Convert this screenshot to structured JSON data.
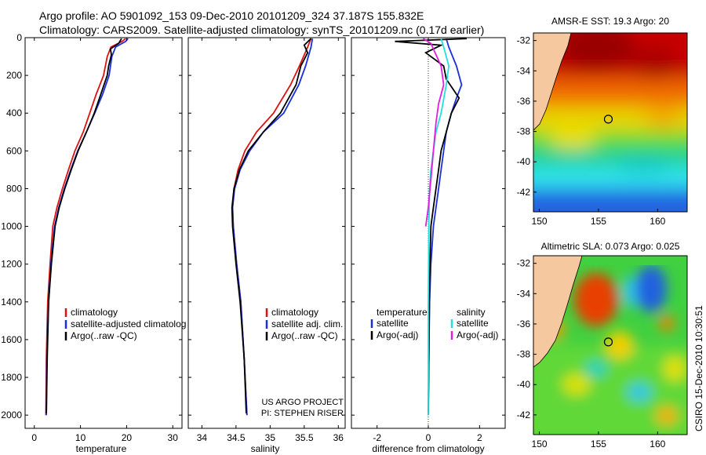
{
  "title_line1": "Argo profile: AO 5901092_153 09-Dec-2010 20101209_324 37.187S 155.832E",
  "title_line2": "Climatology: CARS2009. Satellite-adjusted climatology: synTS_20101209.nc (0.17d earlier)",
  "stamp": "CSIRO 15-Dec-2010 10:30:51",
  "colors": {
    "climatology": "#e01010",
    "satellite": "#1a2ee0",
    "argo": "#000000",
    "salinity_sat": "#20e0e0",
    "salinity_argo": "#e020e0"
  },
  "chart_data": [
    {
      "type": "line",
      "xlabel": "temperature",
      "xlim": [
        -2,
        32
      ],
      "xticks": [
        0,
        10,
        20,
        30
      ],
      "ylim": [
        2070,
        0
      ],
      "yticks": [
        0,
        200,
        400,
        600,
        800,
        1000,
        1200,
        1400,
        1600,
        1800,
        2000
      ],
      "legend": {
        "position": "lower-left",
        "entries": [
          "climatology",
          "satellite-adjusted climatolog",
          "Argo(..raw -QC)"
        ]
      },
      "series": [
        {
          "name": "climatology",
          "color": "#e01010",
          "x": [
            19.8,
            19.0,
            16.6,
            15.8,
            15.0,
            13.4,
            12.0,
            10.6,
            8.8,
            7.4,
            6.1,
            4.9,
            4.0,
            3.4,
            2.9,
            2.6,
            2.5
          ],
          "y": [
            5,
            20,
            50,
            100,
            200,
            300,
            400,
            500,
            600,
            700,
            800,
            900,
            1000,
            1200,
            1400,
            1700,
            2000
          ]
        },
        {
          "name": "satellite-adjusted climatolog",
          "color": "#1a2ee0",
          "x": [
            20.3,
            19.8,
            17.6,
            16.8,
            16.2,
            14.8,
            13.1,
            11.3,
            9.4,
            7.9,
            6.5,
            5.3,
            4.4,
            3.6,
            3.1,
            2.7,
            2.6
          ],
          "y": [
            5,
            20,
            50,
            100,
            200,
            300,
            400,
            500,
            600,
            700,
            800,
            900,
            1000,
            1200,
            1400,
            1700,
            2000
          ]
        },
        {
          "name": "Argo(..raw -QC)",
          "color": "#000000",
          "x": [
            18.9,
            18.3,
            16.5,
            16.7,
            16.1,
            15.8,
            14.4,
            13.0,
            11.3,
            9.5,
            8.0,
            6.6,
            5.4,
            4.5,
            3.7,
            3.1,
            2.8,
            2.6
          ],
          "y": [
            5,
            30,
            60,
            90,
            150,
            200,
            300,
            400,
            500,
            600,
            700,
            800,
            900,
            1000,
            1200,
            1400,
            1700,
            1990
          ]
        }
      ]
    },
    {
      "type": "line",
      "xlabel": "salinity",
      "xlim": [
        33.8,
        36.1
      ],
      "xticks": [
        34,
        34.5,
        35,
        35.5,
        36
      ],
      "ylim": [
        2070,
        0
      ],
      "yticks": [
        0,
        200,
        400,
        600,
        800,
        1000,
        1200,
        1400,
        1600,
        1800,
        2000
      ],
      "legend": {
        "position": "lower-right",
        "entries": [
          "climatology",
          "satellite adj. clim.",
          "Argo(..raw -QC)"
        ]
      },
      "annotation_lines": [
        "US ARGO PROJECT",
        "PI: STEPHEN RISER"
      ],
      "series": [
        {
          "name": "climatology",
          "color": "#e01010",
          "x": [
            35.6,
            35.55,
            35.43,
            35.3,
            35.05,
            34.8,
            34.63,
            34.53,
            34.47,
            34.45,
            34.46,
            34.51,
            34.57,
            34.62,
            34.66
          ],
          "y": [
            5,
            50,
            150,
            250,
            400,
            500,
            600,
            700,
            800,
            900,
            1000,
            1200,
            1400,
            1700,
            2000
          ]
        },
        {
          "name": "satellite adj. clim.",
          "color": "#1a2ee0",
          "x": [
            35.62,
            35.6,
            35.52,
            35.42,
            35.2,
            34.9,
            34.7,
            34.56,
            34.48,
            34.45,
            34.46,
            34.51,
            34.57,
            34.62,
            34.66
          ],
          "y": [
            5,
            50,
            150,
            250,
            400,
            500,
            600,
            700,
            800,
            900,
            1000,
            1200,
            1400,
            1700,
            2000
          ]
        },
        {
          "name": "Argo(..raw -QC)",
          "color": "#000000",
          "x": [
            35.6,
            35.5,
            35.55,
            35.45,
            35.38,
            35.15,
            34.9,
            34.68,
            34.55,
            34.47,
            34.44,
            34.45,
            34.5,
            34.56,
            34.62,
            34.65
          ],
          "y": [
            5,
            40,
            80,
            150,
            250,
            400,
            500,
            600,
            700,
            800,
            900,
            1000,
            1200,
            1400,
            1700,
            1990
          ]
        }
      ]
    },
    {
      "type": "line",
      "xlabel": "difference from climatology",
      "xlim": [
        -3,
        3
      ],
      "xticks": [
        -2,
        0,
        2
      ],
      "ylim": [
        2070,
        0
      ],
      "yticks": [
        0,
        200,
        400,
        600,
        800,
        1000,
        1200,
        1400,
        1600,
        1800,
        2000
      ],
      "legend": {
        "position": "lower",
        "groups": [
          {
            "heading": "temperature",
            "entries": [
              "satellite",
              "Argo(-adj)"
            ]
          },
          {
            "heading": "salinity",
            "entries": [
              "satellite",
              "Argo(-adj)"
            ]
          }
        ]
      },
      "series": [
        {
          "name": "temperature satellite",
          "color": "#1a2ee0",
          "x": [
            0.7,
            0.8,
            1.1,
            1.3,
            1.1,
            0.9,
            0.7,
            0.6,
            0.5,
            0.4,
            0.3,
            0.2,
            0.1,
            0.05,
            0.02,
            0.0
          ],
          "y": [
            5,
            50,
            150,
            250,
            320,
            400,
            500,
            600,
            700,
            800,
            900,
            1000,
            1200,
            1400,
            1700,
            2000
          ]
        },
        {
          "name": "temperature Argo(-adj)",
          "color": "#000000",
          "x": [
            1.5,
            -1.3,
            0.5,
            -0.1,
            0.6,
            0.7,
            1.2,
            0.9,
            0.7,
            0.5,
            0.4,
            0.3,
            0.2,
            0.1,
            0.05,
            0.0
          ],
          "y": [
            5,
            20,
            40,
            80,
            150,
            220,
            320,
            400,
            500,
            600,
            700,
            800,
            900,
            1000,
            1300,
            1990
          ]
        },
        {
          "name": "salinity satellite",
          "color": "#20e0e0",
          "x": [
            0.5,
            0.6,
            0.8,
            0.7,
            0.5,
            0.3,
            0.2,
            0.1,
            0.05,
            0.02,
            0.0,
            0.0
          ],
          "y": [
            5,
            50,
            150,
            250,
            400,
            500,
            600,
            700,
            800,
            1000,
            1400,
            2000
          ]
        },
        {
          "name": "salinity Argo(-adj)",
          "color": "#e020e0",
          "x": [
            -0.2,
            0.1,
            0.2,
            0.5,
            0.6,
            0.4,
            0.3,
            0.2,
            0.1,
            0.0,
            -0.1
          ],
          "y": [
            5,
            30,
            60,
            150,
            250,
            350,
            450,
            600,
            750,
            900,
            1000
          ]
        }
      ]
    },
    {
      "type": "heatmap",
      "title": "AMSR-E SST: 19.3 Argo: 20",
      "xlim": [
        149.5,
        162.5
      ],
      "ylim": [
        -43.3,
        -31.5
      ],
      "xticks": [
        150,
        155,
        160
      ],
      "yticks": [
        -32,
        -34,
        -36,
        -38,
        -40,
        -42
      ],
      "marker": {
        "lon": 155.832,
        "lat": -37.187
      }
    },
    {
      "type": "heatmap",
      "title": "Altimetric SLA: 0.073 Argo: 0.025",
      "xlim": [
        149.5,
        162.5
      ],
      "ylim": [
        -43.3,
        -31.5
      ],
      "xticks": [
        150,
        155,
        160
      ],
      "yticks": [
        -32,
        -34,
        -36,
        -38,
        -40,
        -42
      ],
      "marker": {
        "lon": 155.832,
        "lat": -37.187
      }
    }
  ]
}
